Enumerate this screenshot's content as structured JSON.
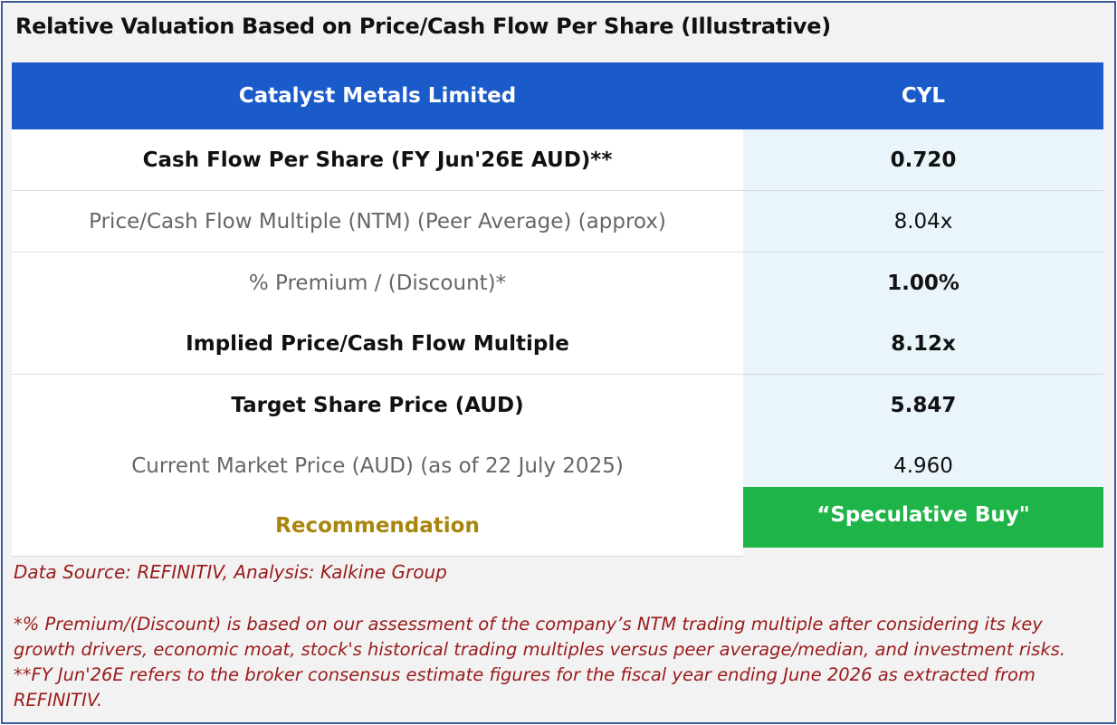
{
  "title": "Relative Valuation Based on Price/Cash Flow Per Share (Illustrative)",
  "table": {
    "header": {
      "company": "Catalyst Metals Limited",
      "ticker": "CYL"
    },
    "rows": [
      {
        "label": "Cash Flow Per Share (FY Jun'26E AUD)**",
        "value": "0.720",
        "style": "bold"
      },
      {
        "label": "Price/Cash Flow Multiple (NTM) (Peer Average) (approx)",
        "value": "8.04x",
        "style": "normal"
      },
      {
        "label": "% Premium / (Discount)*",
        "value": "1.00%",
        "style": "highlight"
      },
      {
        "label": "Implied Price/Cash Flow Multiple",
        "value": "8.12x",
        "style": "bold"
      },
      {
        "label": "Target Share Price (AUD)",
        "value": "5.847",
        "style": "bold"
      },
      {
        "label": "Current Market Price (AUD) (as of 22 July 2025)",
        "value": "4.960",
        "style": "normal"
      }
    ],
    "recommendation": {
      "label": "Recommendation",
      "value": "“Speculative Buy\""
    }
  },
  "colors": {
    "header_bg": "#1a5bc9",
    "value_bg": "#eaf4fb",
    "recommendation_bg": "#1fb447",
    "recommendation_label": "#a8850c",
    "footnote": "#9a1b1b"
  },
  "source": "Data Source: REFINITIV, Analysis: Kalkine Group",
  "footnote": "*% Premium/(Discount) is based on our assessment of the company’s NTM trading multiple after considering its key growth drivers, economic moat, stock's historical trading multiples versus peer average/median, and investment risks. **FY Jun'26E refers to the broker consensus estimate figures for the fiscal year ending June 2026 as extracted from REFINITIV."
}
